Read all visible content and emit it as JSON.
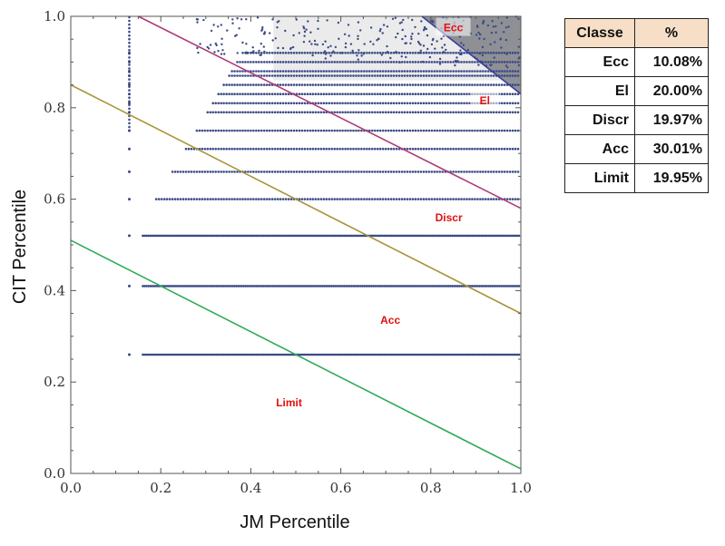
{
  "chart_data": {
    "type": "scatter",
    "title": "",
    "xlabel": "JM Percentile",
    "ylabel": "CIT Percentile",
    "xlim": [
      0.0,
      1.0
    ],
    "ylim": [
      0.0,
      1.0
    ],
    "xticks": [
      "0.0",
      "0.2",
      "0.4",
      "0.6",
      "0.8",
      "1.0"
    ],
    "yticks": [
      "0.0",
      "0.2",
      "0.4",
      "0.6",
      "0.8",
      "1.0"
    ],
    "grid": false,
    "boundaries": [
      {
        "name": "Ecc/El",
        "color": "#3a3a9e",
        "x": [
          0.78,
          1.0
        ],
        "y": [
          1.0,
          0.83
        ]
      },
      {
        "name": "El/Discr",
        "color": "#b03a7a",
        "x": [
          0.15,
          1.0
        ],
        "y": [
          1.0,
          0.58
        ]
      },
      {
        "name": "Discr/Acc",
        "color": "#a8953a",
        "x": [
          0.0,
          1.0
        ],
        "y": [
          0.85,
          0.35
        ]
      },
      {
        "name": "Acc/Limit",
        "color": "#2eaa55",
        "x": [
          0.0,
          1.0
        ],
        "y": [
          0.51,
          0.01
        ]
      }
    ],
    "region_labels": [
      {
        "text": "Ecc",
        "x": 0.85,
        "y": 0.975
      },
      {
        "text": "El",
        "x": 0.92,
        "y": 0.815
      },
      {
        "text": "Discr",
        "x": 0.84,
        "y": 0.56
      },
      {
        "text": "Acc",
        "x": 0.71,
        "y": 0.335
      },
      {
        "text": "Limit",
        "x": 0.485,
        "y": 0.155
      }
    ],
    "scatter_rows_y": [
      0.26,
      0.41,
      0.52,
      0.6,
      0.66,
      0.71,
      0.75,
      0.79,
      0.81,
      0.83,
      0.85,
      0.87,
      0.88,
      0.9,
      0.92
    ],
    "scatter_x_start": 0.13,
    "table": {
      "headers": [
        "Classe",
        "%"
      ],
      "rows": [
        [
          "Ecc",
          "10.08%"
        ],
        [
          "El",
          "20.00%"
        ],
        [
          "Discr",
          "19.97%"
        ],
        [
          "Acc",
          "30.01%"
        ],
        [
          "Limit",
          "19.95%"
        ]
      ]
    }
  },
  "colors": {
    "limit_fill": "#ffffff",
    "acc_fill": "#d9efe3",
    "discr_fill": "#d0ddc3",
    "el_fill": "#c6c7a8",
    "ecc_fill": "#8f9195",
    "point": "#3b4a84"
  }
}
